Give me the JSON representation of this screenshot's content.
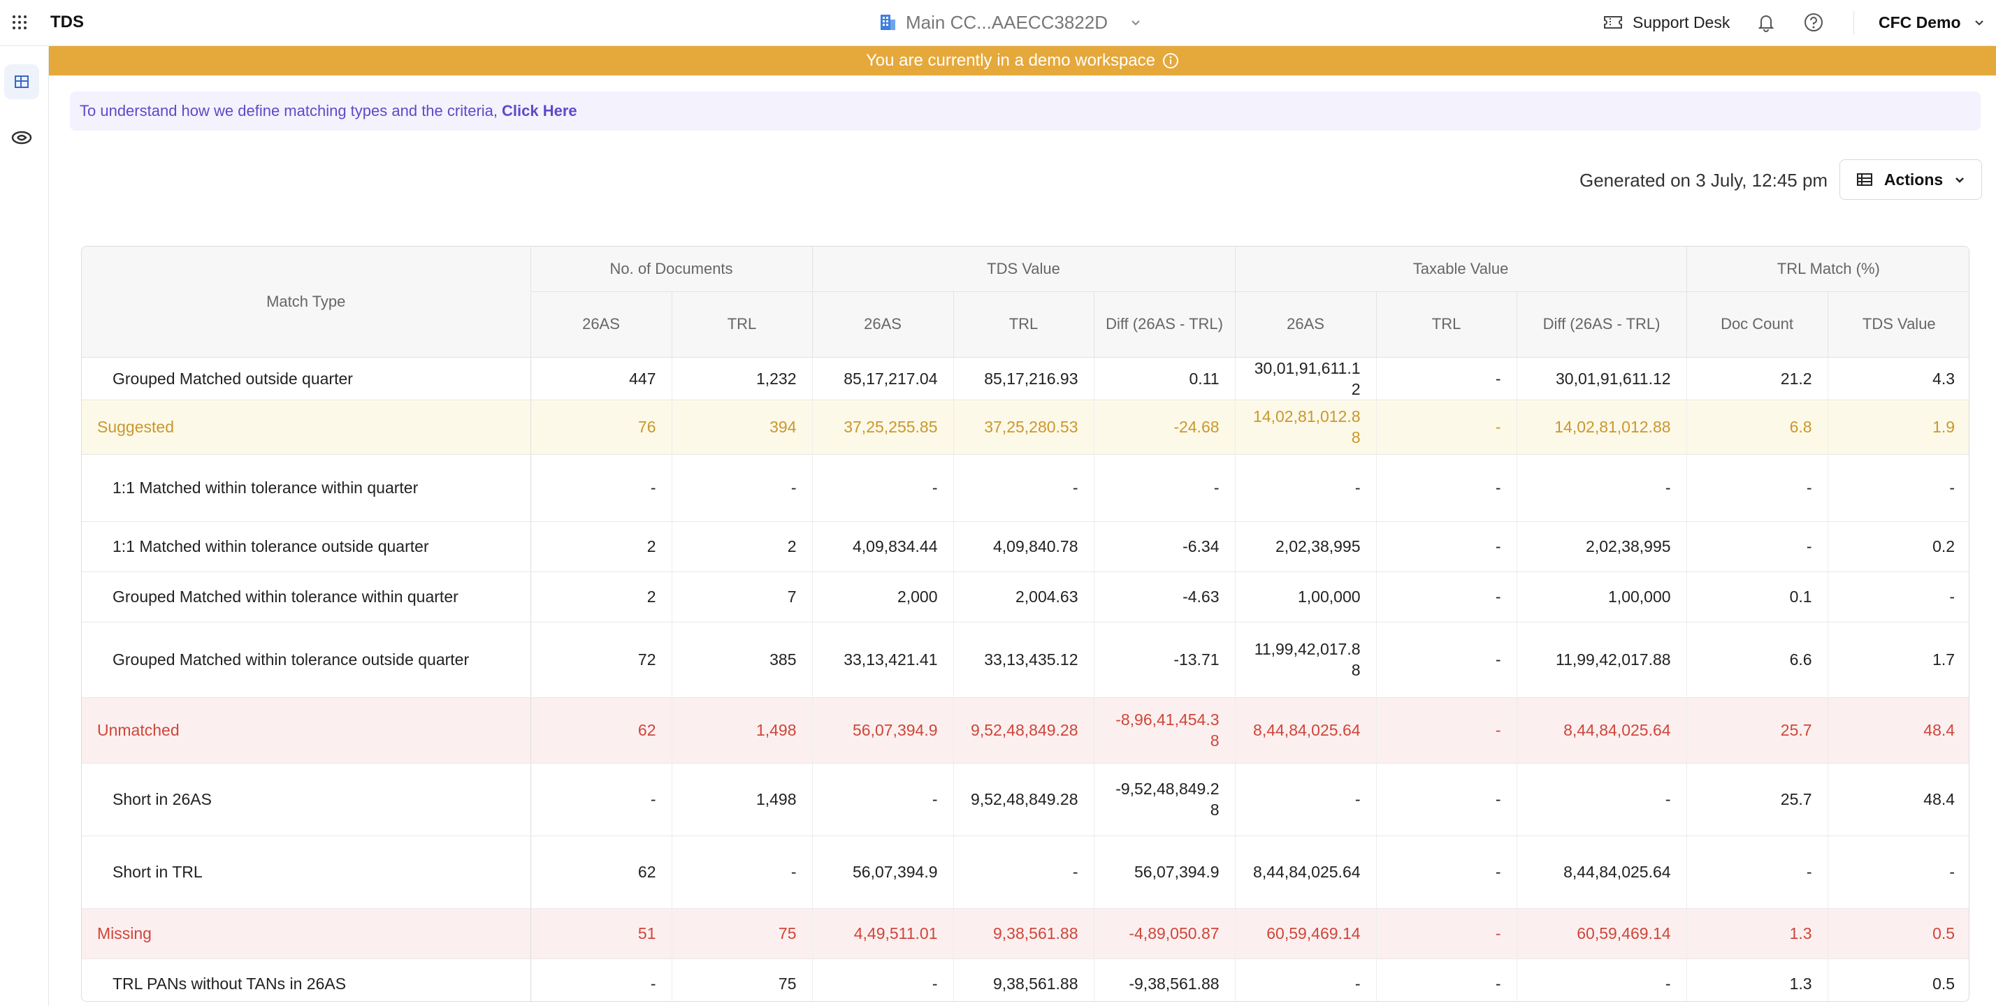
{
  "app": {
    "name": "TDS"
  },
  "workspace": {
    "name": "Main CC...AAECC3822D"
  },
  "header": {
    "support": "Support Desk",
    "user": "CFC Demo"
  },
  "banner": {
    "text": "You are currently in a demo workspace"
  },
  "info": {
    "text": "To understand how we define matching types and the criteria,",
    "link": "Click Here"
  },
  "generated": "Generated on 3 July, 12:45 pm",
  "actions": {
    "label": "Actions"
  },
  "table": {
    "match_type": "Match Type",
    "groups": [
      "No. of Documents",
      "TDS Value",
      "Taxable Value",
      "TRL Match (%)"
    ],
    "sub": [
      "26AS",
      "TRL",
      "26AS",
      "TRL",
      "Diff (26AS - TRL)",
      "26AS",
      "TRL",
      "Diff (26AS - TRL)",
      "Doc Count",
      "TDS Value"
    ],
    "rows": [
      {
        "label": "Grouped Matched outside quarter",
        "c": [
          "447",
          "1,232",
          "85,17,217.04",
          "85,17,216.93",
          "0.11",
          "30,01,91,611.12",
          "-",
          "30,01,91,611.12",
          "21.2",
          "4.3"
        ]
      },
      {
        "label": "Suggested",
        "c": [
          "76",
          "394",
          "37,25,255.85",
          "37,25,280.53",
          "-24.68",
          "14,02,81,012.88",
          "-",
          "14,02,81,012.88",
          "6.8",
          "1.9"
        ]
      },
      {
        "label": "1:1 Matched within tolerance within quarter",
        "c": [
          "-",
          "-",
          "-",
          "-",
          "-",
          "-",
          "-",
          "-",
          "-",
          "-"
        ]
      },
      {
        "label": "1:1 Matched within tolerance outside quarter",
        "c": [
          "2",
          "2",
          "4,09,834.44",
          "4,09,840.78",
          "-6.34",
          "2,02,38,995",
          "-",
          "2,02,38,995",
          "-",
          "0.2"
        ]
      },
      {
        "label": "Grouped Matched within tolerance within quarter",
        "c": [
          "2",
          "7",
          "2,000",
          "2,004.63",
          "-4.63",
          "1,00,000",
          "-",
          "1,00,000",
          "0.1",
          "-"
        ]
      },
      {
        "label": "Grouped Matched within tolerance outside quarter",
        "c": [
          "72",
          "385",
          "33,13,421.41",
          "33,13,435.12",
          "-13.71",
          "11,99,42,017.88",
          "-",
          "11,99,42,017.88",
          "6.6",
          "1.7"
        ]
      },
      {
        "label": "Unmatched",
        "c": [
          "62",
          "1,498",
          "56,07,394.9",
          "9,52,48,849.28",
          "-8,96,41,454.38",
          "8,44,84,025.64",
          "-",
          "8,44,84,025.64",
          "25.7",
          "48.4"
        ]
      },
      {
        "label": "Short in 26AS",
        "c": [
          "-",
          "1,498",
          "-",
          "9,52,48,849.28",
          "-9,52,48,849.28",
          "-",
          "-",
          "-",
          "25.7",
          "48.4"
        ]
      },
      {
        "label": "Short in TRL",
        "c": [
          "62",
          "-",
          "56,07,394.9",
          "-",
          "56,07,394.9",
          "8,44,84,025.64",
          "-",
          "8,44,84,025.64",
          "-",
          "-"
        ]
      },
      {
        "label": "Missing",
        "c": [
          "51",
          "75",
          "4,49,511.01",
          "9,38,561.88",
          "-4,89,050.87",
          "60,59,469.14",
          "-",
          "60,59,469.14",
          "1.3",
          "0.5"
        ]
      },
      {
        "label": "TRL PANs without TANs in 26AS",
        "c": [
          "-",
          "75",
          "-",
          "9,38,561.88",
          "-9,38,561.88",
          "-",
          "-",
          "-",
          "1.3",
          "0.5"
        ]
      }
    ]
  }
}
